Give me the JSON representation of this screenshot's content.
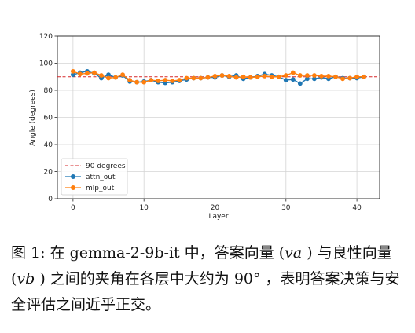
{
  "chart_data": {
    "type": "line",
    "xlabel": "Layer",
    "ylabel": "Angle (degrees)",
    "xlim": [
      -2.2,
      43.2
    ],
    "ylim": [
      0,
      120
    ],
    "xticks": [
      0,
      10,
      20,
      30,
      40
    ],
    "yticks": [
      0,
      20,
      40,
      60,
      80,
      100,
      120
    ],
    "grid": true,
    "legend_position": "lower-left",
    "reference_line": {
      "name": "90 degrees",
      "y": 90,
      "color": "#d62728",
      "style": "dashed"
    },
    "x": [
      0,
      1,
      2,
      3,
      4,
      5,
      6,
      7,
      8,
      9,
      10,
      11,
      12,
      13,
      14,
      15,
      16,
      17,
      18,
      19,
      20,
      21,
      22,
      23,
      24,
      25,
      26,
      27,
      28,
      29,
      30,
      31,
      32,
      33,
      34,
      35,
      36,
      37,
      38,
      39,
      40,
      41
    ],
    "series": [
      {
        "name": "attn_out",
        "color": "#1f77b4",
        "values": [
          91.5,
          93.0,
          94.0,
          92.5,
          89.0,
          91.5,
          89.5,
          91.0,
          86.5,
          86.0,
          86.5,
          87.5,
          86.0,
          85.5,
          86.0,
          87.0,
          88.0,
          89.0,
          89.0,
          89.5,
          89.5,
          91.0,
          90.0,
          91.0,
          88.5,
          89.5,
          90.5,
          92.0,
          91.0,
          90.0,
          87.5,
          88.0,
          85.0,
          88.5,
          88.5,
          89.5,
          88.5,
          90.0,
          89.0,
          89.0,
          89.0,
          90.0
        ]
      },
      {
        "name": "mlp_out",
        "color": "#ff7f0e",
        "values": [
          94.0,
          92.0,
          92.5,
          93.0,
          91.0,
          89.0,
          89.5,
          91.5,
          87.5,
          86.0,
          86.0,
          87.5,
          87.0,
          87.5,
          87.0,
          87.5,
          89.0,
          89.0,
          89.0,
          89.5,
          90.5,
          91.0,
          90.5,
          89.5,
          90.0,
          89.5,
          90.0,
          90.5,
          90.0,
          90.0,
          91.0,
          93.0,
          91.0,
          91.0,
          91.0,
          90.5,
          90.5,
          90.0,
          88.5,
          89.0,
          90.0,
          90.0
        ]
      }
    ]
  },
  "caption": {
    "text": "图 1: 在 gemma-2-9b-it 中，答案向量 (𝑣𝑎 ) 与良性向量 (𝑣𝑏 ) 之间的夹角在各层中大约为 90° ，表明答案决策与安全评估之间近乎正交。"
  }
}
